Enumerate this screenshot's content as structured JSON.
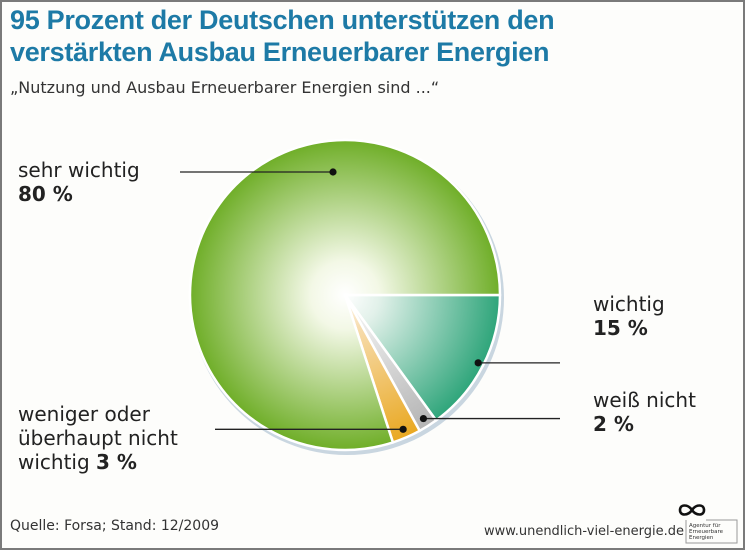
{
  "header": {
    "title_line1": "95 Prozent der Deutschen unterstützen den",
    "title_line2": "verstärkten Ausbau Erneuerbarer Energien",
    "subtitle": "„Nutzung und Ausbau Erneuerbarer Energien sind ...“"
  },
  "footer": {
    "source": "Quelle: Forsa; Stand: 12/2009",
    "url": "www.unendlich-viel-energie.de",
    "logo_text": [
      "Agentur für",
      "Erneuerbare",
      "Energien"
    ]
  },
  "chart_data": {
    "type": "pie",
    "title": "95 Prozent der Deutschen unterstützen den verstärkten Ausbau Erneuerbarer Energien",
    "subtitle": "„Nutzung und Ausbau Erneuerbarer Energien sind ...“",
    "unit": "%",
    "start_angle_deg": 0,
    "direction": "clockwise",
    "slices": [
      {
        "key": "wichtig",
        "label": "wichtig",
        "value": 15,
        "value_label": "15 %",
        "color": "#2ea57a",
        "light": "#e2f1ea"
      },
      {
        "key": "weiss",
        "label": "weiß nicht",
        "value": 2,
        "value_label": "2 %",
        "color": "#b4b4b4",
        "light": "#ececec"
      },
      {
        "key": "weniger",
        "label_lines": [
          "weniger oder",
          "überhaupt nicht",
          "wichtig"
        ],
        "value": 3,
        "value_label": "3 %",
        "color": "#e9a821",
        "light": "#f7ddb0"
      },
      {
        "key": "sehr",
        "label": "sehr wichtig",
        "value": 80,
        "value_label": "80 %",
        "color": "#6fae28",
        "light": "#f3f8e6"
      }
    ]
  }
}
